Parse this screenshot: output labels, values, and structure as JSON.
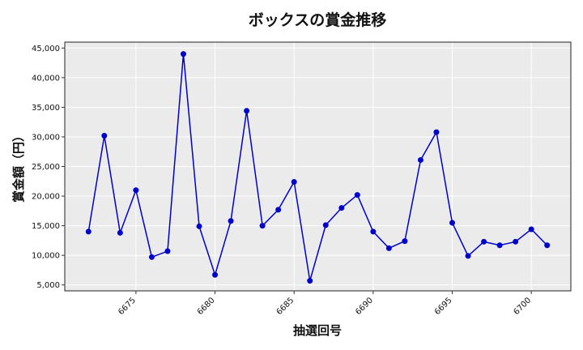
{
  "chart_data": {
    "type": "line",
    "title": "ボックスの賞金推移",
    "xlabel": "抽選回号",
    "ylabel": "賞金額（円）",
    "xlim": [
      6670.5,
      6702.5
    ],
    "ylim": [
      4000,
      46000
    ],
    "grid": true,
    "x_ticks": [
      6675,
      6680,
      6685,
      6690,
      6695,
      6700
    ],
    "y_ticks": [
      5000,
      10000,
      15000,
      20000,
      25000,
      30000,
      35000,
      40000,
      45000
    ],
    "y_tick_labels": [
      "5,000",
      "10,000",
      "15,000",
      "20,000",
      "25,000",
      "30,000",
      "35,000",
      "40,000",
      "45,000"
    ],
    "series": [
      {
        "color": "#0000cc",
        "x": [
          6672,
          6673,
          6674,
          6675,
          6676,
          6677,
          6678,
          6679,
          6680,
          6681,
          6682,
          6683,
          6684,
          6685,
          6686,
          6687,
          6688,
          6689,
          6690,
          6691,
          6692,
          6693,
          6694,
          6695,
          6696,
          6697,
          6698,
          6699,
          6700,
          6701
        ],
        "y": [
          14000,
          30200,
          13800,
          21000,
          9700,
          10700,
          44000,
          14900,
          6700,
          15800,
          34400,
          15000,
          17700,
          22400,
          5700,
          15100,
          18000,
          20200,
          14000,
          11200,
          12400,
          26100,
          30800,
          15500,
          9900,
          12300,
          11700,
          12300,
          14400,
          11700
        ]
      }
    ]
  },
  "colors": {
    "plot_background": "#ebebeb",
    "grid": "#ffffff",
    "line": "#0000cc"
  }
}
